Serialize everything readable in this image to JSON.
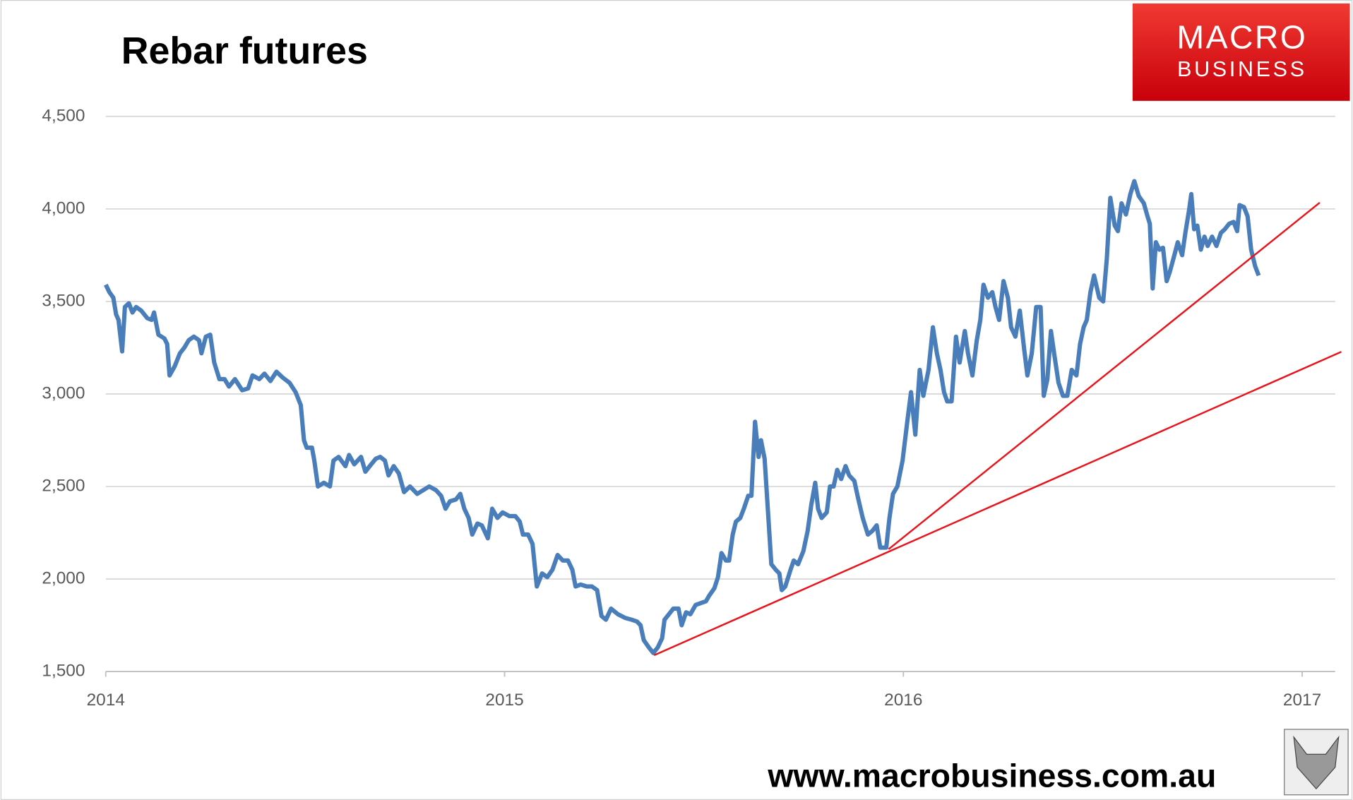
{
  "chart_data": {
    "type": "line",
    "title": "Rebar futures",
    "brand": {
      "top": "MACRO",
      "bottom": "BUSINESS"
    },
    "source": "www.macrobusiness.com.au",
    "xlim": [
      2014,
      2017.1
    ],
    "xticks": [
      2014,
      2015,
      2016,
      2017
    ],
    "ylim": [
      1500,
      4500
    ],
    "yticks": [
      {
        "value": 1500,
        "label": "1,500"
      },
      {
        "value": 2000,
        "label": "2,000"
      },
      {
        "value": 2500,
        "label": "2,500"
      },
      {
        "value": 3000,
        "label": "3,000"
      },
      {
        "value": 3500,
        "label": "3,500"
      },
      {
        "value": 4000,
        "label": "4,000"
      },
      {
        "value": 4500,
        "label": "4,500"
      }
    ],
    "grid": true,
    "series": [
      {
        "color": "#4a7ebb",
        "x": [
          2014.0,
          2014.009,
          2014.019,
          2014.026,
          2014.032,
          2014.041,
          2014.048,
          2014.058,
          2014.067,
          2014.076,
          2014.089,
          2014.104,
          2014.115,
          2014.121,
          2014.132,
          2014.147,
          2014.154,
          2014.16,
          2014.173,
          2014.186,
          2014.197,
          2014.208,
          2014.221,
          2014.234,
          2014.24,
          2014.251,
          2014.262,
          2014.272,
          2014.285,
          2014.298,
          2014.309,
          2014.324,
          2014.342,
          2014.357,
          2014.368,
          2014.385,
          2014.398,
          2014.413,
          2014.428,
          2014.443,
          2014.461,
          2014.476,
          2014.489,
          2014.497,
          2014.504,
          2014.517,
          2014.523,
          2014.532,
          2014.547,
          2014.562,
          2014.571,
          2014.584,
          2014.601,
          2014.61,
          2014.623,
          2014.64,
          2014.651,
          2014.662,
          2014.677,
          2014.688,
          2014.7,
          2014.709,
          2014.722,
          2014.735,
          2014.748,
          2014.763,
          2014.781,
          2014.796,
          2014.811,
          2014.828,
          2014.841,
          2014.852,
          2014.863,
          2014.878,
          2014.889,
          2014.899,
          2014.91,
          2014.919,
          2014.932,
          2014.943,
          2014.958,
          2014.969,
          2014.982,
          2014.995,
          2015.012,
          2015.027,
          2015.038,
          2015.046,
          2015.059,
          2015.07,
          2015.081,
          2015.094,
          2015.107,
          2015.12,
          2015.133,
          2015.146,
          2015.159,
          2015.17,
          2015.178,
          2015.191,
          2015.206,
          2015.219,
          2015.232,
          2015.243,
          2015.254,
          2015.267,
          2015.284,
          2015.302,
          2015.319,
          2015.332,
          2015.341,
          2015.349,
          2015.362,
          2015.373,
          2015.384,
          2015.395,
          2015.401,
          2015.412,
          2015.423,
          2015.436,
          2015.444,
          2015.455,
          2015.466,
          2015.479,
          2015.492,
          2015.505,
          2015.513,
          2015.526,
          2015.535,
          2015.544,
          2015.555,
          2015.563,
          2015.572,
          2015.58,
          2015.591,
          2015.6,
          2015.611,
          2015.619,
          2015.628,
          2015.637,
          2015.643,
          2015.652,
          2015.66,
          2015.669,
          2015.68,
          2015.689,
          2015.695,
          2015.704,
          2015.717,
          2015.725,
          2015.736,
          2015.749,
          2015.76,
          2015.769,
          2015.779,
          2015.786,
          2015.795,
          2015.808,
          2015.816,
          2015.825,
          2015.834,
          2015.844,
          2015.855,
          2015.864,
          2015.877,
          2015.885,
          2015.898,
          2015.911,
          2015.922,
          2015.933,
          2015.942,
          2015.957,
          2015.965,
          2015.974,
          2015.985,
          2015.998,
          2016.011,
          2016.019,
          2016.03,
          2016.041,
          2016.05,
          2016.063,
          2016.074,
          2016.084,
          2016.093,
          2016.102,
          2016.11,
          2016.121,
          2016.132,
          2016.141,
          2016.154,
          2016.162,
          2016.173,
          2016.184,
          2016.193,
          2016.201,
          2016.212,
          2016.223,
          2016.231,
          2016.24,
          2016.251,
          2016.262,
          2016.27,
          2016.281,
          2016.292,
          2016.303,
          2016.311,
          2016.322,
          2016.333,
          2016.344,
          2016.352,
          2016.361,
          2016.37,
          2016.378,
          2016.389,
          2016.4,
          2016.411,
          2016.422,
          2016.434,
          2016.443,
          2016.452,
          2016.46,
          2016.469,
          2016.478,
          2016.491,
          2016.501,
          2016.51,
          2016.519,
          2016.53,
          2016.538,
          2016.547,
          2016.558,
          2016.569,
          2016.579,
          2016.59,
          2016.603,
          2016.612,
          2016.618,
          2016.625,
          2016.633,
          2016.642,
          2016.651,
          2016.66,
          2016.668,
          2016.677,
          2016.688,
          2016.699,
          2016.707,
          2016.716,
          2016.722,
          2016.729,
          2016.737,
          2016.746,
          2016.755,
          2016.763,
          2016.774,
          2016.785,
          2016.796,
          2016.806,
          2016.817,
          2016.828,
          2016.837,
          2016.843,
          2016.854,
          2016.863,
          2016.872,
          2016.882,
          2016.891
        ],
        "values": [
          3590,
          3550,
          3520,
          3430,
          3400,
          3230,
          3470,
          3490,
          3440,
          3470,
          3450,
          3410,
          3400,
          3440,
          3320,
          3300,
          3270,
          3100,
          3150,
          3220,
          3250,
          3290,
          3310,
          3290,
          3220,
          3310,
          3320,
          3170,
          3080,
          3080,
          3040,
          3080,
          3020,
          3030,
          3100,
          3080,
          3110,
          3070,
          3120,
          3090,
          3060,
          3010,
          2940,
          2750,
          2710,
          2710,
          2640,
          2500,
          2520,
          2500,
          2640,
          2660,
          2610,
          2670,
          2620,
          2660,
          2580,
          2610,
          2650,
          2660,
          2640,
          2560,
          2610,
          2570,
          2470,
          2500,
          2460,
          2480,
          2500,
          2480,
          2450,
          2380,
          2420,
          2430,
          2460,
          2380,
          2330,
          2240,
          2300,
          2290,
          2220,
          2380,
          2330,
          2360,
          2340,
          2340,
          2310,
          2240,
          2240,
          2190,
          1960,
          2030,
          2010,
          2050,
          2130,
          2100,
          2100,
          2050,
          1960,
          1970,
          1960,
          1960,
          1940,
          1800,
          1780,
          1840,
          1810,
          1790,
          1780,
          1770,
          1750,
          1670,
          1630,
          1600,
          1630,
          1680,
          1780,
          1810,
          1840,
          1840,
          1750,
          1820,
          1810,
          1860,
          1870,
          1880,
          1910,
          1950,
          2010,
          2140,
          2100,
          2100,
          2240,
          2310,
          2330,
          2380,
          2450,
          2450,
          2850,
          2660,
          2750,
          2650,
          2380,
          2080,
          2050,
          2030,
          1940,
          1960,
          2050,
          2100,
          2080,
          2150,
          2260,
          2400,
          2520,
          2380,
          2330,
          2360,
          2500,
          2500,
          2590,
          2540,
          2610,
          2560,
          2530,
          2450,
          2330,
          2240,
          2260,
          2290,
          2170,
          2170,
          2330,
          2460,
          2500,
          2640,
          2870,
          3010,
          2780,
          3130,
          2990,
          3130,
          3360,
          3220,
          3130,
          3010,
          2960,
          2960,
          3310,
          3170,
          3340,
          3220,
          3100,
          3290,
          3400,
          3590,
          3520,
          3550,
          3470,
          3400,
          3610,
          3520,
          3360,
          3310,
          3450,
          3240,
          3100,
          3220,
          3470,
          3470,
          2990,
          3080,
          3340,
          3220,
          3060,
          2990,
          2990,
          3130,
          3100,
          3270,
          3360,
          3400,
          3550,
          3640,
          3520,
          3500,
          3730,
          4060,
          3910,
          3880,
          4030,
          3970,
          4080,
          4150,
          4070,
          4030,
          3960,
          3920,
          3570,
          3820,
          3780,
          3790,
          3610,
          3660,
          3730,
          3820,
          3750,
          3870,
          3990,
          4080,
          3890,
          3910,
          3780,
          3850,
          3800,
          3850,
          3800,
          3870,
          3890,
          3920,
          3930,
          3880,
          4020,
          4010,
          3960,
          3780,
          3690,
          3640
        ]
      },
      {
        "color": "#e8141c",
        "x": [
          2015.375,
          2017.098
        ],
        "values": [
          1588,
          3228
        ]
      },
      {
        "color": "#e8141c",
        "x": [
          2015.963,
          2017.044
        ],
        "values": [
          2161,
          4034
        ]
      }
    ]
  }
}
